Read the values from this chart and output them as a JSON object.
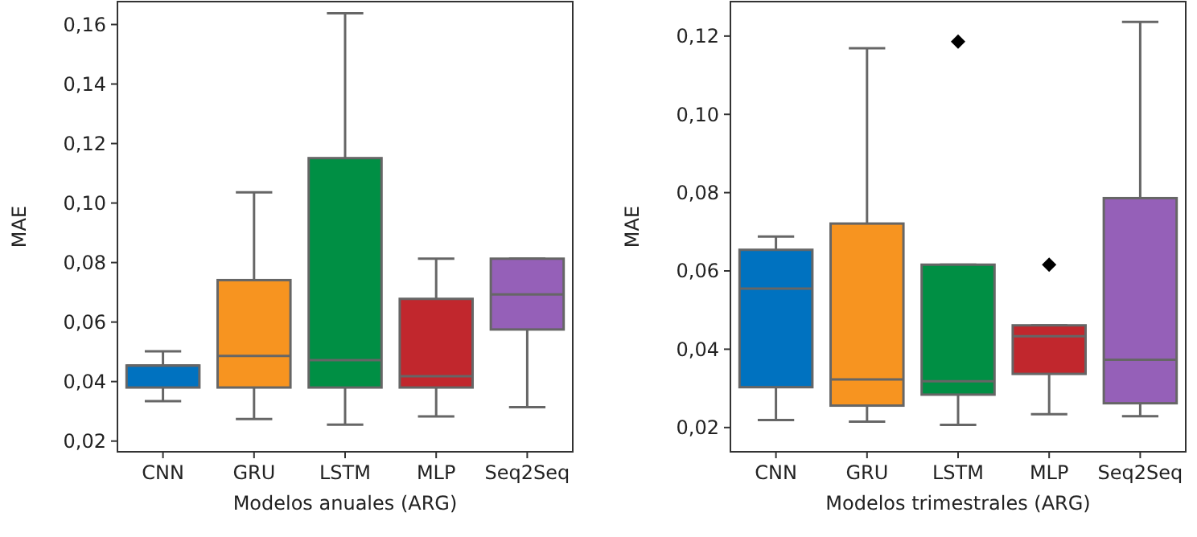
{
  "chart_data": [
    {
      "type": "box",
      "xlabel": "Modelos anuales (ARG)",
      "ylabel": "MAE",
      "categories": [
        "CNN",
        "GRU",
        "LSTM",
        "MLP",
        "Seq2Seq"
      ],
      "colors": [
        "#0072c0",
        "#f79420",
        "#008f44",
        "#c1272d",
        "#9560b8"
      ],
      "boxes": [
        {
          "low": 0.0334,
          "q1": 0.038,
          "median": 0.0454,
          "q3": 0.0454,
          "high": 0.0502
        },
        {
          "low": 0.0274,
          "q1": 0.038,
          "median": 0.0486,
          "q3": 0.0741,
          "high": 0.1036
        },
        {
          "low": 0.0255,
          "q1": 0.038,
          "median": 0.0472,
          "q3": 0.1151,
          "high": 0.1638
        },
        {
          "low": 0.0283,
          "q1": 0.038,
          "median": 0.0418,
          "q3": 0.0678,
          "high": 0.0813
        },
        {
          "low": 0.0314,
          "q1": 0.0575,
          "median": 0.0693,
          "q3": 0.0813,
          "high": 0.0813
        }
      ],
      "ylim": [
        0.0164,
        0.1677
      ],
      "yticks": [
        {
          "value": 0.02,
          "label": "0,02"
        },
        {
          "value": 0.04,
          "label": "0,04"
        },
        {
          "value": 0.06,
          "label": "0,06"
        },
        {
          "value": 0.08,
          "label": "0,08"
        },
        {
          "value": 0.1,
          "label": "0,10"
        },
        {
          "value": 0.12,
          "label": "0,12"
        },
        {
          "value": 0.14,
          "label": "0,14"
        },
        {
          "value": 0.16,
          "label": "0,16"
        }
      ],
      "grid": false,
      "marker": "diamond"
    },
    {
      "type": "box",
      "xlabel": "Modelos trimestrales (ARG)",
      "ylabel": "MAE",
      "categories": [
        "CNN",
        "GRU",
        "LSTM",
        "MLP",
        "Seq2Seq"
      ],
      "colors": [
        "#0072c0",
        "#f79420",
        "#008f44",
        "#c1272d",
        "#9560b8"
      ],
      "boxes": [
        {
          "low": 0.0219,
          "q1": 0.0303,
          "median": 0.0555,
          "q3": 0.0654,
          "high": 0.0688
        },
        {
          "low": 0.0215,
          "q1": 0.0256,
          "median": 0.0323,
          "q3": 0.0721,
          "high": 0.1169
        },
        {
          "low": 0.0207,
          "q1": 0.0284,
          "median": 0.0318,
          "q3": 0.0616,
          "high": 0.0616,
          "outliers": [
            0.1186
          ]
        },
        {
          "low": 0.0234,
          "q1": 0.0337,
          "median": 0.0433,
          "q3": 0.0461,
          "high": 0.0461,
          "outliers": [
            0.0616
          ]
        },
        {
          "low": 0.0229,
          "q1": 0.0262,
          "median": 0.0373,
          "q3": 0.0786,
          "high": 0.1236
        }
      ],
      "ylim": [
        0.0138,
        0.1288
      ],
      "yticks": [
        {
          "value": 0.02,
          "label": "0,02"
        },
        {
          "value": 0.04,
          "label": "0,04"
        },
        {
          "value": 0.06,
          "label": "0,06"
        },
        {
          "value": 0.08,
          "label": "0,08"
        },
        {
          "value": 0.1,
          "label": "0,10"
        },
        {
          "value": 0.12,
          "label": "0,12"
        }
      ],
      "grid": false,
      "marker": "diamond"
    }
  ]
}
